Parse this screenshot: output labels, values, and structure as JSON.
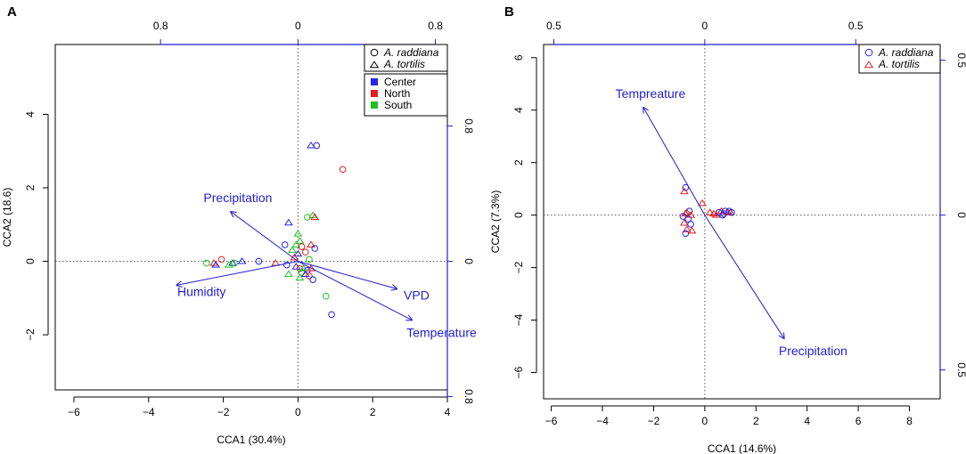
{
  "figure": {
    "colors": {
      "Center": "#2525e6",
      "North": "#e02020",
      "South": "#20c020",
      "arrow": "#1f1fd0",
      "axis": "#000000"
    }
  },
  "chart_data": [
    {
      "type": "scatter",
      "panel_label": "A",
      "xlabel": "CCA1 (30.4%)",
      "ylabel": "CCA2 (18.6)",
      "xlim": [
        -6.5,
        4.0
      ],
      "ylim": [
        -3.5,
        5.9
      ],
      "x_ticks": [
        -6,
        -4,
        -2,
        0,
        2,
        4
      ],
      "x_tick_labels": [
        "−6",
        "−4",
        "−2",
        "0",
        "2",
        "4"
      ],
      "y_ticks": [
        -2,
        0,
        2,
        4
      ],
      "y_tick_labels": [
        "−2",
        "0",
        "2",
        "4"
      ],
      "arrow_axis_top": {
        "ticks": [
          -0.8,
          0,
          0.8
        ],
        "labels": [
          "0.8",
          "0",
          "0.8"
        ],
        "scale": 4.6
      },
      "arrow_axis_right": {
        "ticks": [
          0.8,
          0,
          -0.8
        ],
        "labels": [
          "0.8",
          "0",
          "0.8"
        ],
        "scale": 4.6
      },
      "legend_shapes": [
        {
          "label": "A. raddiana",
          "marker": "circle"
        },
        {
          "label": "A. tortilis",
          "marker": "triangle"
        }
      ],
      "legend_groups": [
        {
          "label": "Center",
          "color": "#2525e6"
        },
        {
          "label": "North",
          "color": "#e02020"
        },
        {
          "label": "South",
          "color": "#20c020"
        }
      ],
      "arrows": [
        {
          "label": "Precipitation",
          "x": -1.8,
          "y": 1.35
        },
        {
          "label": "Humidity",
          "x": -3.25,
          "y": -0.65
        },
        {
          "label": "VPD",
          "x": 2.65,
          "y": -0.75
        },
        {
          "label": "Temperature",
          "x": 3.05,
          "y": -1.6
        }
      ],
      "points": [
        {
          "species": "tortilis",
          "region": "Center",
          "x": 0.35,
          "y": 3.15
        },
        {
          "species": "raddiana",
          "region": "Center",
          "x": 0.5,
          "y": 3.15
        },
        {
          "species": "raddiana",
          "region": "North",
          "x": 1.2,
          "y": 2.5
        },
        {
          "species": "tortilis",
          "region": "South",
          "x": 0.4,
          "y": 1.25
        },
        {
          "species": "tortilis",
          "region": "North",
          "x": 0.45,
          "y": 1.2
        },
        {
          "species": "raddiana",
          "region": "South",
          "x": 0.25,
          "y": 1.2
        },
        {
          "species": "tortilis",
          "region": "Center",
          "x": -0.25,
          "y": 1.05
        },
        {
          "species": "tortilis",
          "region": "South",
          "x": 0.0,
          "y": 0.75
        },
        {
          "species": "tortilis",
          "region": "South",
          "x": 0.05,
          "y": 0.55
        },
        {
          "species": "tortilis",
          "region": "South",
          "x": -0.05,
          "y": 0.45
        },
        {
          "species": "raddiana",
          "region": "Center",
          "x": -0.35,
          "y": 0.45
        },
        {
          "species": "raddiana",
          "region": "North",
          "x": 0.1,
          "y": 0.4
        },
        {
          "species": "tortilis",
          "region": "North",
          "x": 0.35,
          "y": 0.45
        },
        {
          "species": "raddiana",
          "region": "Center",
          "x": 0.45,
          "y": 0.35
        },
        {
          "species": "tortilis",
          "region": "South",
          "x": -0.15,
          "y": 0.3
        },
        {
          "species": "raddiana",
          "region": "North",
          "x": 0.2,
          "y": 0.25
        },
        {
          "species": "tortilis",
          "region": "Center",
          "x": 0.0,
          "y": 0.2
        },
        {
          "species": "tortilis",
          "region": "North",
          "x": -0.1,
          "y": 0.1
        },
        {
          "species": "raddiana",
          "region": "South",
          "x": 0.3,
          "y": 0.05
        },
        {
          "species": "raddiana",
          "region": "North",
          "x": -2.05,
          "y": 0.05
        },
        {
          "species": "raddiana",
          "region": "Center",
          "x": -1.05,
          "y": 0.0
        },
        {
          "species": "tortilis",
          "region": "North",
          "x": -0.6,
          "y": -0.05
        },
        {
          "species": "tortilis",
          "region": "Center",
          "x": -1.5,
          "y": 0.0
        },
        {
          "species": "tortilis",
          "region": "Center",
          "x": -1.75,
          "y": -0.05
        },
        {
          "species": "raddiana",
          "region": "South",
          "x": -2.45,
          "y": -0.05
        },
        {
          "species": "tortilis",
          "region": "North",
          "x": -2.25,
          "y": -0.05
        },
        {
          "species": "tortilis",
          "region": "Center",
          "x": -2.2,
          "y": -0.1
        },
        {
          "species": "raddiana",
          "region": "South",
          "x": -1.7,
          "y": -0.05
        },
        {
          "species": "tortilis",
          "region": "South",
          "x": -1.85,
          "y": -0.1
        },
        {
          "species": "raddiana",
          "region": "Center",
          "x": -0.3,
          "y": -0.1
        },
        {
          "species": "tortilis",
          "region": "Center",
          "x": -0.05,
          "y": -0.15
        },
        {
          "species": "raddiana",
          "region": "North",
          "x": 0.05,
          "y": -0.2
        },
        {
          "species": "tortilis",
          "region": "South",
          "x": 0.15,
          "y": -0.2
        },
        {
          "species": "raddiana",
          "region": "Center",
          "x": 0.25,
          "y": -0.25
        },
        {
          "species": "tortilis",
          "region": "North",
          "x": 0.35,
          "y": -0.2
        },
        {
          "species": "raddiana",
          "region": "South",
          "x": 0.1,
          "y": -0.3
        },
        {
          "species": "tortilis",
          "region": "Center",
          "x": 0.2,
          "y": -0.35
        },
        {
          "species": "raddiana",
          "region": "North",
          "x": 0.3,
          "y": -0.4
        },
        {
          "species": "tortilis",
          "region": "South",
          "x": -0.25,
          "y": -0.35
        },
        {
          "species": "raddiana",
          "region": "Center",
          "x": 0.4,
          "y": -0.5
        },
        {
          "species": "tortilis",
          "region": "South",
          "x": 0.05,
          "y": -0.45
        },
        {
          "species": "raddiana",
          "region": "South",
          "x": 0.75,
          "y": -0.95
        },
        {
          "species": "raddiana",
          "region": "Center",
          "x": 0.9,
          "y": -1.45
        }
      ]
    },
    {
      "type": "scatter",
      "panel_label": "B",
      "xlabel": "CCA1 (14.6%)",
      "ylabel": "CCA2 (7.3%)",
      "xlim": [
        -6.3,
        9.2
      ],
      "ylim": [
        -7.0,
        6.5
      ],
      "x_ticks": [
        -6,
        -4,
        -2,
        0,
        2,
        4,
        6,
        8
      ],
      "x_tick_labels": [
        "−6",
        "−4",
        "−2",
        "0",
        "2",
        "4",
        "6",
        "8"
      ],
      "y_ticks": [
        -6,
        -4,
        -2,
        0,
        2,
        4,
        6
      ],
      "y_tick_labels": [
        "−6",
        "−4",
        "−2",
        "0",
        "2",
        "4",
        "6"
      ],
      "arrow_axis_top": {
        "ticks": [
          -0.5,
          0,
          0.5
        ],
        "labels": [
          "0.5",
          "0",
          "0.5"
        ],
        "scale": 11.8
      },
      "arrow_axis_right": {
        "ticks": [
          0.5,
          0,
          -0.5
        ],
        "labels": [
          "0.5",
          "0",
          "0.5"
        ],
        "scale": 11.8
      },
      "legend_shapes": [
        {
          "label": "A. raddiana",
          "marker": "circle",
          "color": "#2525e6"
        },
        {
          "label": "A. tortilis",
          "marker": "triangle",
          "color": "#e02020"
        }
      ],
      "arrows": [
        {
          "label": "Tempreature",
          "x": -2.4,
          "y": 4.1
        },
        {
          "label": "Precipitation",
          "x": 3.1,
          "y": -4.7
        }
      ],
      "points": [
        {
          "species": "raddiana",
          "x": -0.75,
          "y": 1.05
        },
        {
          "species": "tortilis",
          "x": -0.8,
          "y": 0.9
        },
        {
          "species": "tortilis",
          "x": -0.1,
          "y": 0.45
        },
        {
          "species": "raddiana",
          "x": -0.6,
          "y": 0.15
        },
        {
          "species": "tortilis",
          "x": -0.75,
          "y": 0.05
        },
        {
          "species": "tortilis",
          "x": -0.55,
          "y": 0.0
        },
        {
          "species": "raddiana",
          "x": -0.65,
          "y": -0.15
        },
        {
          "species": "tortilis",
          "x": -0.8,
          "y": -0.3
        },
        {
          "species": "raddiana",
          "x": -0.55,
          "y": -0.35
        },
        {
          "species": "tortilis",
          "x": -0.7,
          "y": -0.55
        },
        {
          "species": "raddiana",
          "x": -0.75,
          "y": -0.7
        },
        {
          "species": "tortilis",
          "x": -0.5,
          "y": -0.6
        },
        {
          "species": "tortilis",
          "x": -0.7,
          "y": 0.1
        },
        {
          "species": "raddiana",
          "x": -0.85,
          "y": -0.05
        },
        {
          "species": "tortilis",
          "x": 0.2,
          "y": 0.1
        },
        {
          "species": "tortilis",
          "x": 0.35,
          "y": 0.05
        },
        {
          "species": "raddiana",
          "x": 0.55,
          "y": 0.1
        },
        {
          "species": "tortilis",
          "x": 0.45,
          "y": 0.0
        },
        {
          "species": "tortilis",
          "x": 0.65,
          "y": 0.15
        },
        {
          "species": "raddiana",
          "x": 0.75,
          "y": 0.05
        },
        {
          "species": "raddiana",
          "x": 0.8,
          "y": 0.15
        },
        {
          "species": "tortilis",
          "x": 0.9,
          "y": 0.1
        },
        {
          "species": "raddiana",
          "x": 0.95,
          "y": 0.15
        },
        {
          "species": "tortilis",
          "x": 1.0,
          "y": 0.1
        },
        {
          "species": "raddiana",
          "x": 1.05,
          "y": 0.1
        },
        {
          "species": "raddiana",
          "x": 0.7,
          "y": 0.0
        }
      ]
    }
  ]
}
